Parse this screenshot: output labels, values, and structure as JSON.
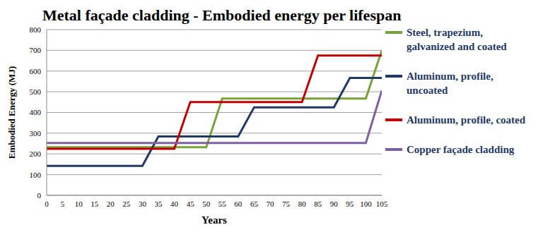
{
  "chart_data": {
    "type": "line",
    "title": "Metal façade cladding - Embodied energy per lifespan",
    "x_label": "Years",
    "y_label": "Embodied Energy (MJ)",
    "x": [
      0,
      5,
      10,
      15,
      20,
      25,
      30,
      35,
      40,
      45,
      50,
      55,
      60,
      65,
      70,
      75,
      80,
      85,
      90,
      95,
      100,
      105
    ],
    "series": [
      {
        "name": "Steel, trapezium, galvanized and coated",
        "color": "#77a33a",
        "values": [
          232,
          232,
          232,
          232,
          232,
          232,
          232,
          232,
          232,
          232,
          232,
          467,
          467,
          467,
          467,
          467,
          467,
          467,
          467,
          467,
          467,
          700
        ]
      },
      {
        "name": "Aluminum, profile, uncoated",
        "color": "#1f3864",
        "values": [
          142,
          142,
          142,
          142,
          142,
          142,
          142,
          284,
          284,
          284,
          284,
          284,
          284,
          425,
          425,
          425,
          425,
          425,
          425,
          567,
          567,
          567
        ]
      },
      {
        "name": "Aluminum, profile, coated",
        "color": "#c00000",
        "values": [
          225,
          225,
          225,
          225,
          225,
          225,
          225,
          225,
          225,
          450,
          450,
          450,
          450,
          450,
          450,
          450,
          450,
          675,
          675,
          675,
          675,
          675
        ]
      },
      {
        "name": "Copper façade cladding",
        "color": "#7f5fa0",
        "values": [
          253,
          253,
          253,
          253,
          253,
          253,
          253,
          253,
          253,
          253,
          253,
          253,
          253,
          253,
          253,
          253,
          253,
          253,
          253,
          253,
          253,
          506
        ]
      }
    ],
    "xlim": [
      0,
      105
    ],
    "xticks": [
      0,
      5,
      10,
      15,
      20,
      25,
      30,
      35,
      40,
      45,
      50,
      55,
      60,
      65,
      70,
      75,
      80,
      85,
      90,
      95,
      100,
      105
    ],
    "ylim": [
      0,
      800
    ],
    "yticks": [
      0,
      100,
      200,
      300,
      400,
      500,
      600,
      700,
      800
    ],
    "grid": true,
    "legend": "right"
  }
}
